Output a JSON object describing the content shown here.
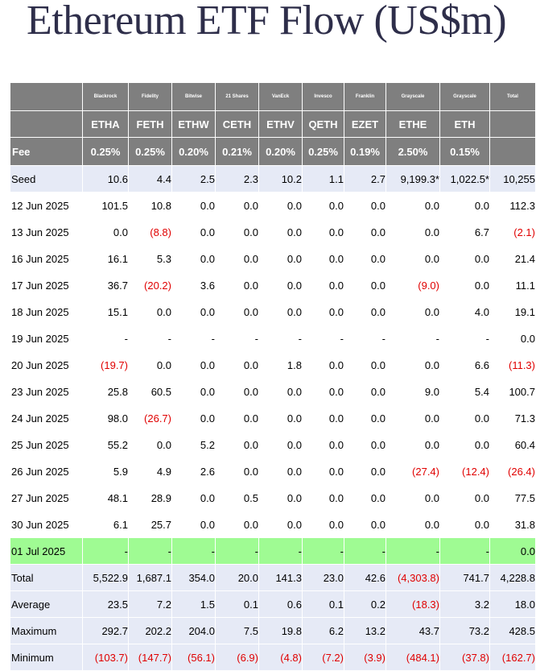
{
  "title": "Ethereum ETF Flow (US$m)",
  "colors": {
    "header": "#7f7f7f",
    "summary_row": "#e6eaf6",
    "latest_row": "#9ffb93",
    "negative": "#e00000"
  },
  "columns": [
    {
      "issuer": "Blackrock",
      "ticker": "ETHA",
      "fee": "0.25%"
    },
    {
      "issuer": "Fidelity",
      "ticker": "FETH",
      "fee": "0.25%"
    },
    {
      "issuer": "Bitwise",
      "ticker": "ETHW",
      "fee": "0.20%"
    },
    {
      "issuer": "21 Shares",
      "ticker": "CETH",
      "fee": "0.21%"
    },
    {
      "issuer": "VanEck",
      "ticker": "ETHV",
      "fee": "0.20%"
    },
    {
      "issuer": "Invesco",
      "ticker": "QETH",
      "fee": "0.25%"
    },
    {
      "issuer": "Franklin",
      "ticker": "EZET",
      "fee": "0.19%"
    },
    {
      "issuer": "Grayscale",
      "ticker": "ETHE",
      "fee": "2.50%"
    },
    {
      "issuer": "Grayscale",
      "ticker": "ETH",
      "fee": "0.15%"
    }
  ],
  "total_header": "Total",
  "fee_label": "Fee",
  "rows": [
    {
      "label": "Seed",
      "style": "blue",
      "values": [
        "10.6",
        "4.4",
        "2.5",
        "2.3",
        "10.2",
        "1.1",
        "2.7",
        "9,199.3*",
        "1,022.5*"
      ],
      "total": "10,255"
    },
    {
      "label": "12 Jun 2025",
      "style": "white",
      "values": [
        "101.5",
        "10.8",
        "0.0",
        "0.0",
        "0.0",
        "0.0",
        "0.0",
        "0.0",
        "0.0"
      ],
      "total": "112.3"
    },
    {
      "label": "13 Jun 2025",
      "style": "white",
      "values": [
        "0.0",
        "(8.8)",
        "0.0",
        "0.0",
        "0.0",
        "0.0",
        "0.0",
        "0.0",
        "6.7"
      ],
      "total": "(2.1)"
    },
    {
      "label": "16 Jun 2025",
      "style": "white",
      "values": [
        "16.1",
        "5.3",
        "0.0",
        "0.0",
        "0.0",
        "0.0",
        "0.0",
        "0.0",
        "0.0"
      ],
      "total": "21.4"
    },
    {
      "label": "17 Jun 2025",
      "style": "white",
      "values": [
        "36.7",
        "(20.2)",
        "3.6",
        "0.0",
        "0.0",
        "0.0",
        "0.0",
        "(9.0)",
        "0.0"
      ],
      "total": "11.1"
    },
    {
      "label": "18 Jun 2025",
      "style": "white",
      "values": [
        "15.1",
        "0.0",
        "0.0",
        "0.0",
        "0.0",
        "0.0",
        "0.0",
        "0.0",
        "4.0"
      ],
      "total": "19.1"
    },
    {
      "label": "19 Jun 2025",
      "style": "white",
      "values": [
        "-",
        "-",
        "-",
        "-",
        "-",
        "-",
        "-",
        "-",
        "-"
      ],
      "total": "0.0"
    },
    {
      "label": "20 Jun 2025",
      "style": "white",
      "values": [
        "(19.7)",
        "0.0",
        "0.0",
        "0.0",
        "1.8",
        "0.0",
        "0.0",
        "0.0",
        "6.6"
      ],
      "total": "(11.3)"
    },
    {
      "label": "23 Jun 2025",
      "style": "white",
      "values": [
        "25.8",
        "60.5",
        "0.0",
        "0.0",
        "0.0",
        "0.0",
        "0.0",
        "9.0",
        "5.4"
      ],
      "total": "100.7"
    },
    {
      "label": "24 Jun 2025",
      "style": "white",
      "values": [
        "98.0",
        "(26.7)",
        "0.0",
        "0.0",
        "0.0",
        "0.0",
        "0.0",
        "0.0",
        "0.0"
      ],
      "total": "71.3"
    },
    {
      "label": "25 Jun 2025",
      "style": "white",
      "values": [
        "55.2",
        "0.0",
        "5.2",
        "0.0",
        "0.0",
        "0.0",
        "0.0",
        "0.0",
        "0.0"
      ],
      "total": "60.4"
    },
    {
      "label": "26 Jun 2025",
      "style": "white",
      "values": [
        "5.9",
        "4.9",
        "2.6",
        "0.0",
        "0.0",
        "0.0",
        "0.0",
        "(27.4)",
        "(12.4)"
      ],
      "total": "(26.4)"
    },
    {
      "label": "27 Jun 2025",
      "style": "white",
      "values": [
        "48.1",
        "28.9",
        "0.0",
        "0.5",
        "0.0",
        "0.0",
        "0.0",
        "0.0",
        "0.0"
      ],
      "total": "77.5"
    },
    {
      "label": "30 Jun 2025",
      "style": "white",
      "values": [
        "6.1",
        "25.7",
        "0.0",
        "0.0",
        "0.0",
        "0.0",
        "0.0",
        "0.0",
        "0.0"
      ],
      "total": "31.8"
    },
    {
      "label": "01 Jul 2025",
      "style": "green",
      "values": [
        "-",
        "-",
        "-",
        "-",
        "-",
        "-",
        "-",
        "-",
        "-"
      ],
      "total": "0.0"
    },
    {
      "label": "Total",
      "style": "blue",
      "values": [
        "5,522.9",
        "1,687.1",
        "354.0",
        "20.0",
        "141.3",
        "23.0",
        "42.6",
        "(4,303.8)",
        "741.7"
      ],
      "total": "4,228.8"
    },
    {
      "label": "Average",
      "style": "blue",
      "values": [
        "23.5",
        "7.2",
        "1.5",
        "0.1",
        "0.6",
        "0.1",
        "0.2",
        "(18.3)",
        "3.2"
      ],
      "total": "18.0"
    },
    {
      "label": "Maximum",
      "style": "blue",
      "values": [
        "292.7",
        "202.2",
        "204.0",
        "7.5",
        "19.8",
        "6.2",
        "13.2",
        "43.7",
        "73.2"
      ],
      "total": "428.5"
    },
    {
      "label": "Minimum",
      "style": "blue",
      "values": [
        "(103.7)",
        "(147.7)",
        "(56.1)",
        "(6.9)",
        "(4.8)",
        "(7.2)",
        "(3.9)",
        "(484.1)",
        "(37.8)"
      ],
      "total": "(162.7)"
    }
  ]
}
